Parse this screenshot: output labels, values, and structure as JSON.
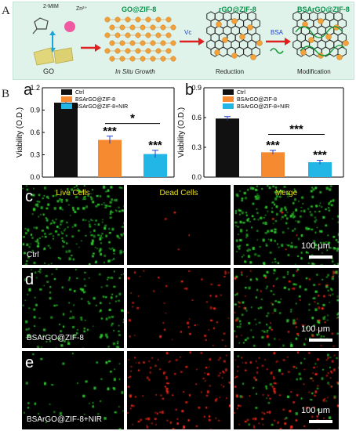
{
  "panel_A": {
    "letter": "A",
    "precursor_labels": [
      "2-MIM",
      "Zn²⁺"
    ],
    "go_label": "GO",
    "stages": [
      "GO@ZIF-8",
      "rGO@ZIF-8",
      "BSArGO@ZIF-8"
    ],
    "steps": [
      "In Situ Growth",
      "Reduction",
      "Modification"
    ],
    "arrow_reagents": [
      "Vc",
      "BSA"
    ]
  },
  "panel_B": {
    "letter": "B"
  },
  "colors": {
    "ctrl": "#111111",
    "bsa": "#f58a30",
    "nir": "#22b6e6",
    "live": "#2fd12f",
    "dead": "#ff2a1a",
    "title_yellow": "#e8e020",
    "scheme_green": "#0a8f4a"
  },
  "chart_data": [
    {
      "letter": "a",
      "type": "bar",
      "categories": [
        "Ctrl",
        "BSArGO@ZIF-8",
        "BSArGO@ZIF-8+NIR"
      ],
      "values": [
        1.0,
        0.5,
        0.31
      ],
      "errors": [
        0.06,
        0.05,
        0.05
      ],
      "ylabel": "Viability (O.D.)",
      "ylim": [
        0,
        1.2
      ],
      "yticks": [
        "0.0",
        "0.3",
        "0.6",
        "0.9",
        "1.2"
      ],
      "ytick_values": [
        0,
        0.3,
        0.6,
        0.9,
        1.2
      ],
      "legend": [
        "Ctrl",
        "BSArGO@ZIF-8",
        "BSArGO@ZIF-8+NIR"
      ],
      "legend_position": "top-right",
      "bar_marks": [
        "",
        "***",
        "***"
      ],
      "comparison_mark": "*"
    },
    {
      "letter": "b",
      "type": "bar",
      "categories": [
        "Ctrl",
        "BSArGO@ZIF-8",
        "BSArGO@ZIF-8+NIR"
      ],
      "values": [
        0.59,
        0.25,
        0.15
      ],
      "errors": [
        0.02,
        0.02,
        0.02
      ],
      "ylabel": "Viability (O.D.)",
      "ylim": [
        0,
        0.9
      ],
      "yticks": [
        "0.0",
        "0.3",
        "0.6",
        "0.9"
      ],
      "ytick_values": [
        0,
        0.3,
        0.6,
        0.9
      ],
      "legend": [
        "Ctrl",
        "BSArGO@ZIF-8",
        "BSArGO@ZIF-8+NIR"
      ],
      "legend_position": "top-right",
      "bar_marks": [
        "",
        "***",
        "***"
      ],
      "comparison_mark": "***"
    }
  ],
  "microscopy": {
    "column_titles": [
      "Live Cells",
      "Dead Cells",
      "Merge"
    ],
    "rows": [
      {
        "letter": "c",
        "label": "Ctrl",
        "scale": "100 μm",
        "live": 260,
        "dead": 4
      },
      {
        "letter": "d",
        "label": "BSArGO@ZIF-8",
        "scale": "100 μm",
        "live": 150,
        "dead": 60
      },
      {
        "letter": "e",
        "label": "BSArGO@ZIF-8+NIR",
        "scale": "100 μm",
        "live": 45,
        "dead": 120
      }
    ]
  }
}
